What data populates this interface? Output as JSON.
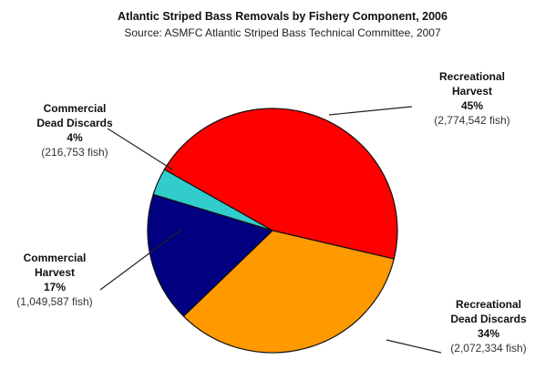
{
  "chart_data": {
    "type": "pie",
    "title": "Atlantic Striped Bass Removals by Fishery Component, 2006",
    "subtitle": "Source: ASMFC Atlantic Striped Bass Technical Committee, 2007",
    "slices": [
      {
        "name_lines": [
          "Recreational",
          "Harvest"
        ],
        "name": "Recreational Harvest",
        "percent_label": "45%",
        "count_label": "(2,774,542 fish)",
        "value": 2774542,
        "color": "#ff0000"
      },
      {
        "name_lines": [
          "Recreational",
          "Dead Discards"
        ],
        "name": "Recreational Dead Discards",
        "percent_label": "34%",
        "count_label": "(2,072,334 fish)",
        "value": 2072334,
        "color": "#ff9900"
      },
      {
        "name_lines": [
          "Commercial",
          "Harvest"
        ],
        "name": "Commercial Harvest",
        "percent_label": "17%",
        "count_label": "(1,049,587 fish)",
        "value": 1049587,
        "color": "#000080"
      },
      {
        "name_lines": [
          "Commercial",
          "Dead Discards"
        ],
        "name": "Commercial Dead Discards",
        "percent_label": "4%",
        "count_label": "(216,753 fish)",
        "value": 216753,
        "color": "#33cccc"
      }
    ]
  }
}
